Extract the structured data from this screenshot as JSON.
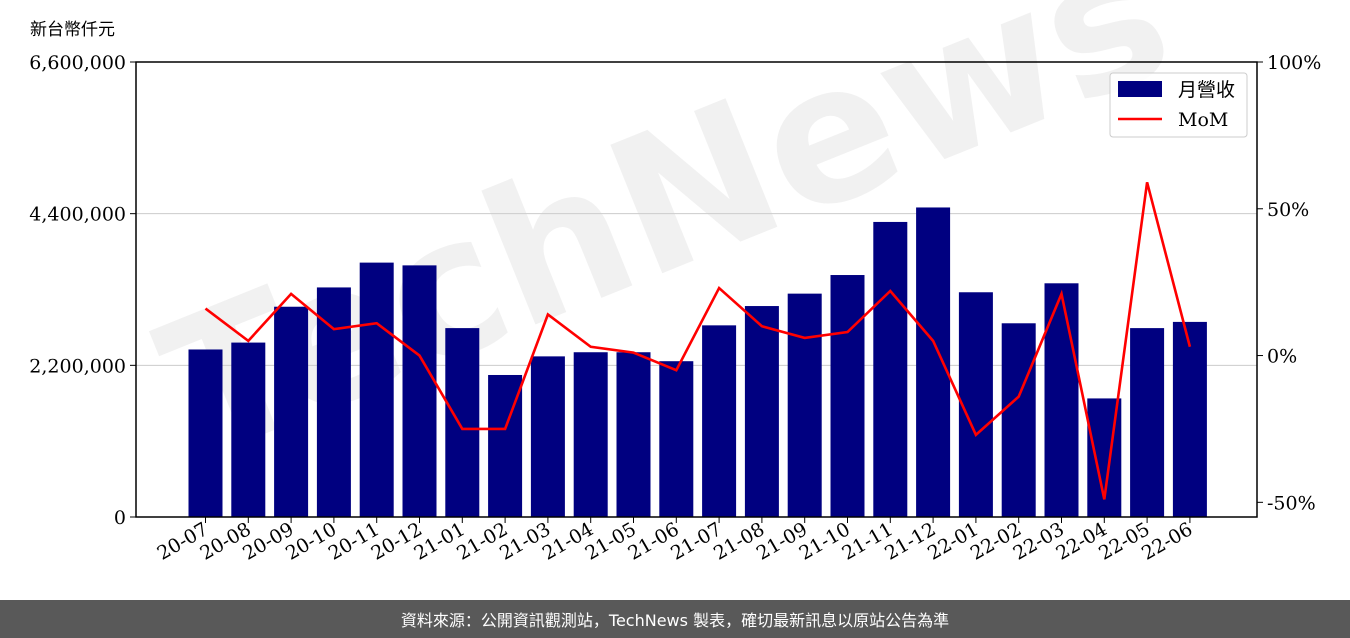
{
  "chart_data": {
    "type": "bar",
    "unit_label": "新台幣仟元",
    "categories": [
      "20-07",
      "20-08",
      "20-09",
      "20-10",
      "20-11",
      "20-12",
      "21-01",
      "21-02",
      "21-03",
      "21-04",
      "21-05",
      "21-06",
      "21-07",
      "21-08",
      "21-09",
      "21-10",
      "21-11",
      "21-12",
      "22-01",
      "22-02",
      "22-03",
      "22-04",
      "22-05",
      "22-06"
    ],
    "series": [
      {
        "name": "月營收",
        "axis": "left",
        "color": "#000080",
        "values": [
          2430000,
          2530000,
          3050000,
          3330000,
          3690000,
          3650000,
          2740000,
          2060000,
          2330000,
          2390000,
          2390000,
          2260000,
          2780000,
          3060000,
          3240000,
          3510000,
          4280000,
          4490000,
          3260000,
          2810000,
          3390000,
          1720000,
          2740000,
          2830000
        ]
      },
      {
        "name": "MoM",
        "axis": "right",
        "color": "#ff0000",
        "values": [
          16,
          5,
          21,
          9,
          11,
          0,
          -25,
          -25,
          14,
          3,
          1,
          -5,
          23,
          10,
          6,
          8,
          22,
          5,
          -27,
          -14,
          21,
          -49,
          59,
          3
        ]
      }
    ],
    "ylim_left": [
      0,
      6600000
    ],
    "yticks_left": [
      "0",
      "2,200,000",
      "4,400,000",
      "6,600,000"
    ],
    "ylim_right": [
      -55,
      100
    ],
    "yticks_right": [
      "-50%",
      "0%",
      "50%",
      "100%"
    ],
    "grid": "horizontal",
    "legend_position": "top-right"
  },
  "watermark": "TechNews",
  "footer": "資料來源：公開資訊觀測站，TechNews 製表，確切最新訊息以原站公告為準"
}
